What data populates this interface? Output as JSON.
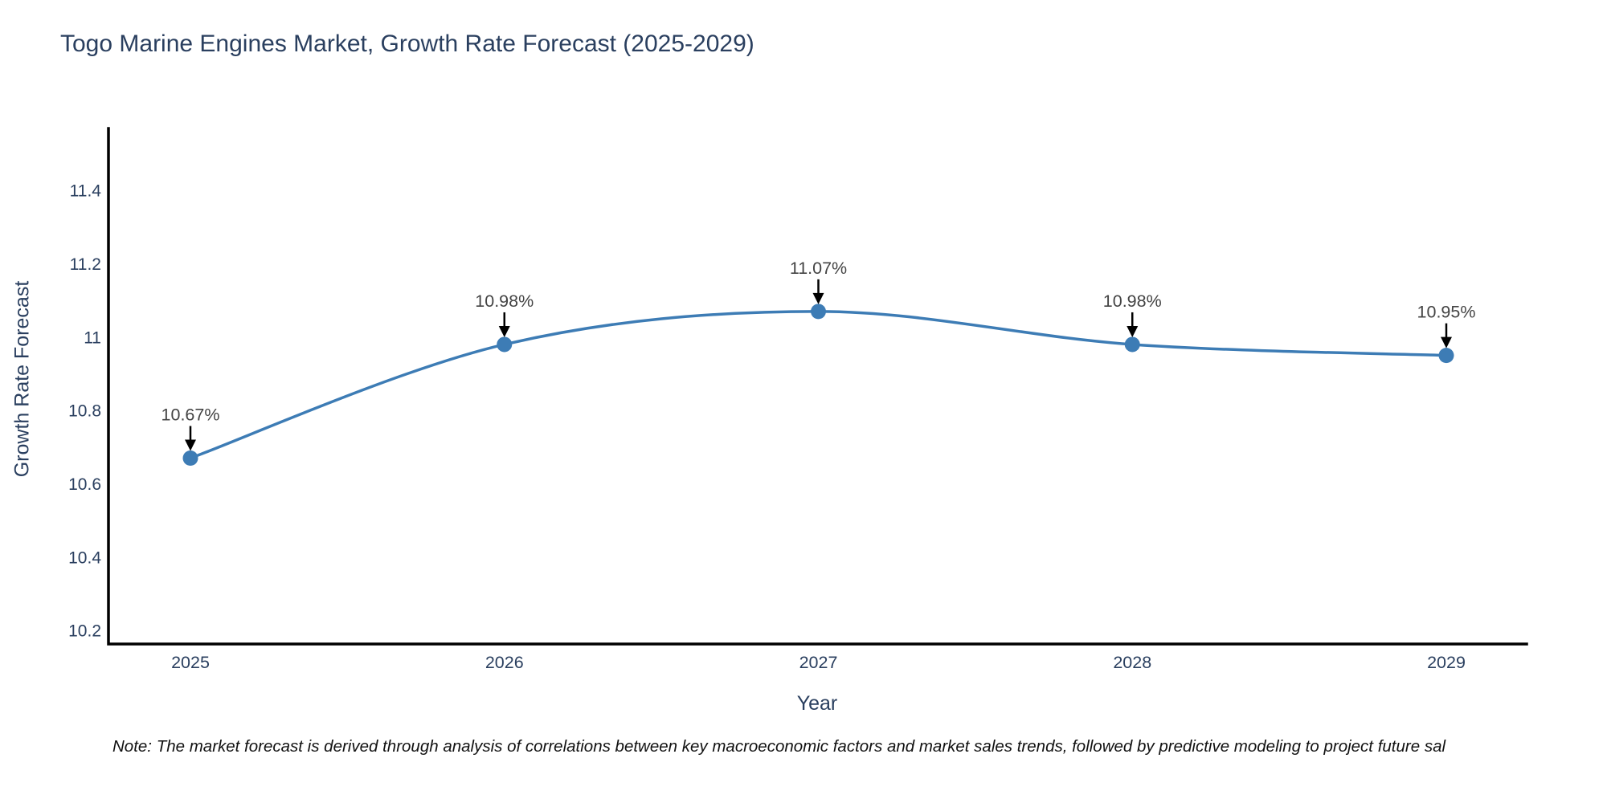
{
  "title": "Togo Marine Engines Market, Growth Rate Forecast (2025-2029)",
  "note": "Note: The market forecast is derived through analysis of correlations between key macroeconomic factors and market sales trends, followed by predictive modeling to project future sal",
  "chart_data": {
    "type": "line",
    "title": "Togo Marine Engines Market, Growth Rate Forecast (2025-2029)",
    "x": [
      "2025",
      "2026",
      "2027",
      "2028",
      "2029"
    ],
    "values": [
      10.67,
      10.98,
      11.07,
      10.98,
      10.95
    ],
    "point_labels": [
      "10.67%",
      "10.98%",
      "11.07%",
      "10.98%",
      "10.95%"
    ],
    "xlabel": "Year",
    "ylabel": "Growth Rate Forecast",
    "ylim": [
      10.163,
      11.569
    ],
    "yticks": [
      10.2,
      10.4,
      10.6,
      10.8,
      11,
      11.2,
      11.4
    ],
    "ytick_labels": [
      "10.2",
      "10.4",
      "10.6",
      "10.8",
      "11",
      "11.2",
      "11.4"
    ],
    "line_shape": "spline",
    "grid": false,
    "legend": "none",
    "colors": {
      "line": "#3d7cb5",
      "marker": "#3d7cb5",
      "axis_line": "#000000",
      "tick_text": "#2a3f5f",
      "annotation_text": "#444444",
      "annotation_arrow": "#000000",
      "title_text": "#2a3f5f"
    }
  }
}
